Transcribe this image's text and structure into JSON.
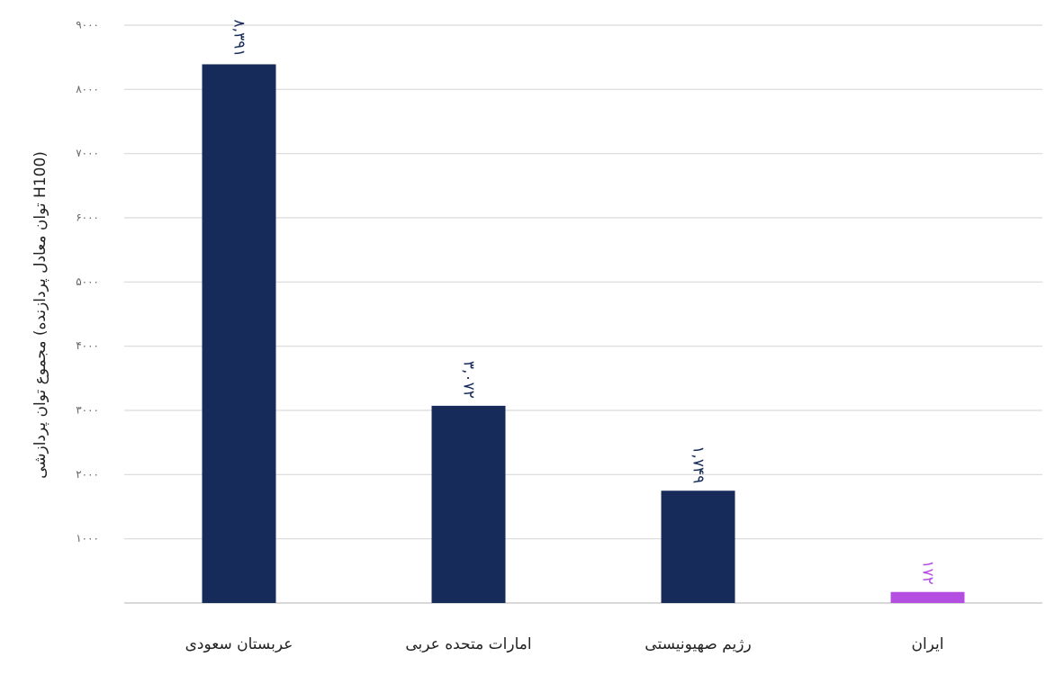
{
  "chart_data": {
    "type": "bar",
    "y_label": "مجموع توان پردازشی (توان معادل پردازنده H100)",
    "categories": [
      "عربستان سعودی",
      "امارات متحده عربی",
      "رژیم صهیونیستی",
      "ایران"
    ],
    "values": [
      8391,
      3072,
      1749,
      172
    ],
    "value_labels": [
      "۸,۳۹۱",
      "۳,۰۷۲",
      "۱,۷۴۹",
      "۱۷۲"
    ],
    "colors": [
      "#172b5a",
      "#172b5a",
      "#172b5a",
      "#b44ee0"
    ],
    "ylim": [
      0,
      9000
    ],
    "yticks": [
      {
        "value": 1000,
        "label": "۱۰۰۰"
      },
      {
        "value": 2000,
        "label": "۲۰۰۰"
      },
      {
        "value": 3000,
        "label": "۳۰۰۰"
      },
      {
        "value": 4000,
        "label": "۴۰۰۰"
      },
      {
        "value": 5000,
        "label": "۵۰۰۰"
      },
      {
        "value": 6000,
        "label": "۶۰۰۰"
      },
      {
        "value": 7000,
        "label": "۷۰۰۰"
      },
      {
        "value": 8000,
        "label": "۸۰۰۰"
      },
      {
        "value": 9000,
        "label": "۹۰۰۰"
      }
    ],
    "grid": true
  }
}
